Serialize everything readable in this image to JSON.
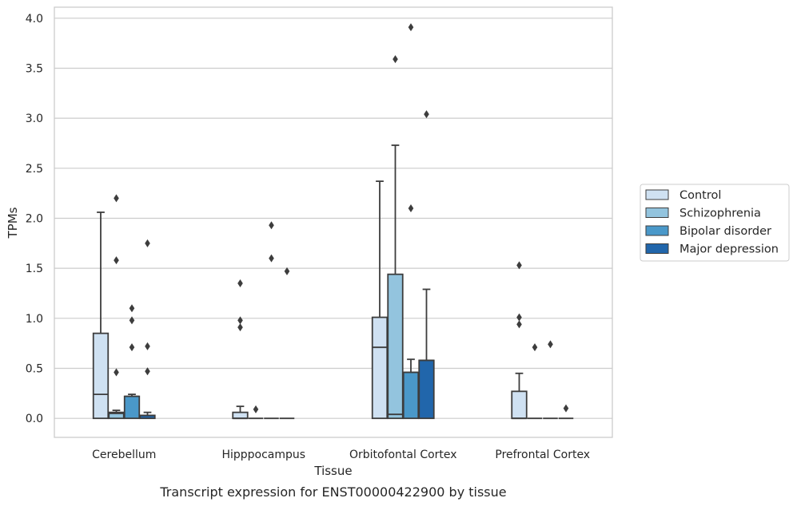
{
  "caption": "Transcript expression for ENST00000422900 by tissue",
  "chart_data": {
    "type": "box",
    "xlabel": "Tissue",
    "ylabel": "TPMs",
    "ylim": [
      -0.19,
      4.11
    ],
    "yticks": [
      "0.0",
      "0.5",
      "1.0",
      "1.5",
      "2.0",
      "2.5",
      "3.0",
      "3.5",
      "4.0"
    ],
    "grid": "horizontal",
    "legend_position": "right",
    "categories": [
      "Cerebellum",
      "Hipppocampus",
      "Orbitofontal Cortex",
      "Prefrontal Cortex"
    ],
    "series": [
      {
        "name": "Control",
        "color": "#cfe1f2",
        "boxes": [
          {
            "q1": 0,
            "median": 0.24,
            "q3": 0.85,
            "whisker_low": 0,
            "whisker_high": 2.06,
            "outliers": []
          },
          {
            "q1": 0,
            "median": 0,
            "q3": 0.06,
            "whisker_low": 0,
            "whisker_high": 0.12,
            "outliers": [
              1.35,
              0.98,
              0.91
            ]
          },
          {
            "q1": 0,
            "median": 0.71,
            "q3": 1.01,
            "whisker_low": 0,
            "whisker_high": 2.37,
            "outliers": []
          },
          {
            "q1": 0,
            "median": 0,
            "q3": 0.27,
            "whisker_low": 0,
            "whisker_high": 0.45,
            "outliers": [
              1.53,
              1.01,
              0.94
            ]
          }
        ]
      },
      {
        "name": "Schizophrenia",
        "color": "#93c4de",
        "boxes": [
          {
            "q1": 0,
            "median": 0.05,
            "q3": 0.06,
            "whisker_low": 0,
            "whisker_high": 0.08,
            "outliers": [
              2.2,
              1.58,
              0.46
            ]
          },
          {
            "q1": 0,
            "median": 0,
            "q3": 0,
            "whisker_low": 0,
            "whisker_high": 0,
            "outliers": [
              0.09
            ]
          },
          {
            "q1": 0,
            "median": 0.04,
            "q3": 1.44,
            "whisker_low": 0,
            "whisker_high": 2.73,
            "outliers": [
              3.59
            ]
          },
          {
            "q1": 0,
            "median": 0,
            "q3": 0,
            "whisker_low": 0,
            "whisker_high": 0,
            "outliers": [
              0.71
            ]
          }
        ]
      },
      {
        "name": "Bipolar disorder",
        "color": "#4a98c9",
        "boxes": [
          {
            "q1": 0,
            "median": 0.22,
            "q3": 0.22,
            "whisker_low": 0,
            "whisker_high": 0.24,
            "outliers": [
              1.1,
              0.98,
              0.71
            ]
          },
          {
            "q1": 0,
            "median": 0,
            "q3": 0,
            "whisker_low": 0,
            "whisker_high": 0,
            "outliers": [
              1.93,
              1.6
            ]
          },
          {
            "q1": 0,
            "median": 0.46,
            "q3": 0.46,
            "whisker_low": 0,
            "whisker_high": 0.59,
            "outliers": [
              3.91,
              2.1
            ]
          },
          {
            "q1": 0,
            "median": 0,
            "q3": 0,
            "whisker_low": 0,
            "whisker_high": 0,
            "outliers": [
              0.74
            ]
          }
        ]
      },
      {
        "name": "Major depression",
        "color": "#2166ab",
        "boxes": [
          {
            "q1": 0,
            "median": 0.03,
            "q3": 0.03,
            "whisker_low": 0,
            "whisker_high": 0.06,
            "outliers": [
              1.75,
              0.72,
              0.47
            ]
          },
          {
            "q1": 0,
            "median": 0,
            "q3": 0,
            "whisker_low": 0,
            "whisker_high": 0,
            "outliers": [
              1.47
            ]
          },
          {
            "q1": 0,
            "median": 0.58,
            "q3": 0.58,
            "whisker_low": 0,
            "whisker_high": 1.29,
            "outliers": [
              3.04
            ]
          },
          {
            "q1": 0,
            "median": 0,
            "q3": 0,
            "whisker_low": 0,
            "whisker_high": 0,
            "outliers": [
              0.1
            ]
          }
        ]
      }
    ]
  }
}
